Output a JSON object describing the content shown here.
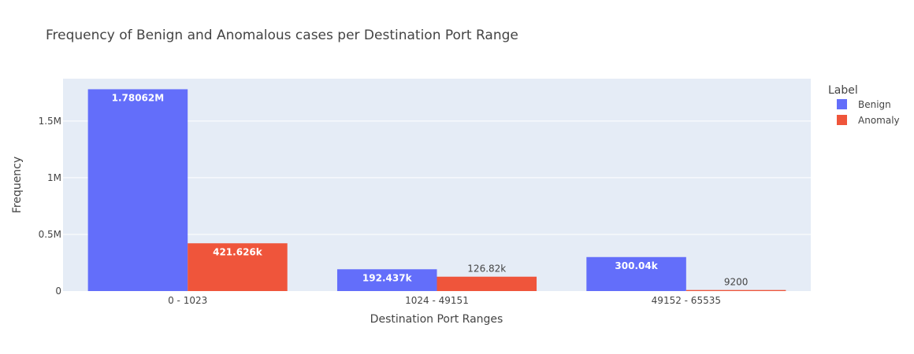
{
  "chart_data": {
    "type": "bar",
    "title": "Frequency of Benign and Anomalous cases per Destination Port Range",
    "xlabel": "Destination Port Ranges",
    "ylabel": "Frequency",
    "categories": [
      "0 - 1023",
      "1024 - 49151",
      "49152 - 65535"
    ],
    "series": [
      {
        "name": "Benign",
        "color": "#636efa",
        "values": [
          1780620,
          192437,
          300040
        ],
        "labels": [
          "1.78062M",
          "192.437k",
          "300.04k"
        ]
      },
      {
        "name": "Anomaly",
        "color": "#ef553b",
        "values": [
          421626,
          126820,
          9200
        ],
        "labels": [
          "421.626k",
          "126.82k",
          "9200"
        ]
      }
    ],
    "ylim": [
      0,
      1874000
    ],
    "yticks": [
      0,
      500000,
      1000000,
      1500000
    ],
    "ytick_labels": [
      "0",
      "0.5M",
      "1M",
      "1.5M"
    ],
    "legend": {
      "title": "Label",
      "placement": "top-right"
    },
    "grid": true,
    "plot_background": "#e5ecf6"
  }
}
